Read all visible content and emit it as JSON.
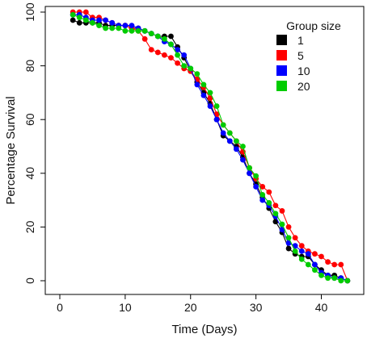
{
  "chart_data": {
    "type": "line",
    "xlabel": "Time (Days)",
    "ylabel": "Percentage Survival",
    "xlim": [
      0,
      45
    ],
    "ylim": [
      0,
      100
    ],
    "xticks": [
      0,
      10,
      20,
      30,
      40
    ],
    "yticks": [
      0,
      20,
      40,
      60,
      80,
      100
    ],
    "xtick_labels": [
      "0",
      "10",
      "20",
      "30",
      "40"
    ],
    "ytick_labels": [
      "0",
      "20",
      "40",
      "60",
      "80",
      "100"
    ],
    "grid": false,
    "legend": {
      "title": "Group size",
      "placement": "top-right"
    },
    "series": [
      {
        "name": "1",
        "color": "#000000",
        "x": [
          2,
          3,
          4,
          5,
          6,
          7,
          8,
          9,
          10,
          11,
          12,
          13,
          14,
          15,
          16,
          17,
          18,
          19,
          20,
          21,
          22,
          23,
          24,
          25,
          26,
          27,
          28,
          29,
          30,
          31,
          32,
          33,
          34,
          35,
          36,
          37,
          38,
          39,
          40,
          41,
          42,
          43,
          44
        ],
        "y": [
          97,
          96,
          96,
          96,
          96,
          95,
          95,
          95,
          95,
          94,
          94,
          93,
          92,
          91,
          91,
          91,
          87,
          83,
          78,
          74,
          70,
          66,
          60,
          54,
          52,
          50,
          46,
          40,
          36,
          31,
          27,
          22,
          18,
          12,
          10,
          9,
          9,
          6,
          4,
          2,
          2,
          1,
          0
        ]
      },
      {
        "name": "5",
        "color": "#ff0000",
        "x": [
          2,
          3,
          4,
          5,
          6,
          7,
          8,
          9,
          10,
          11,
          12,
          13,
          14,
          15,
          16,
          17,
          18,
          19,
          20,
          21,
          22,
          23,
          24,
          25,
          26,
          27,
          28,
          29,
          30,
          31,
          32,
          33,
          34,
          35,
          36,
          37,
          38,
          39,
          40,
          41,
          42,
          43,
          44
        ],
        "y": [
          100,
          100,
          100,
          98,
          98,
          97,
          96,
          95,
          95,
          94,
          93,
          90,
          86,
          85,
          84,
          83,
          81,
          79,
          78,
          75,
          72,
          68,
          62,
          58,
          55,
          52,
          48,
          42,
          38,
          35,
          33,
          28,
          26,
          20,
          16,
          13,
          11,
          10,
          9,
          7,
          6,
          6,
          0
        ]
      },
      {
        "name": "10",
        "color": "#0000ff",
        "x": [
          2,
          3,
          4,
          5,
          6,
          7,
          8,
          9,
          10,
          11,
          12,
          13,
          14,
          15,
          16,
          17,
          18,
          19,
          20,
          21,
          22,
          23,
          24,
          25,
          26,
          27,
          28,
          29,
          30,
          31,
          32,
          33,
          34,
          35,
          36,
          37,
          38,
          39,
          40,
          41,
          42,
          43,
          44
        ],
        "y": [
          99,
          99,
          98,
          97,
          97,
          97,
          96,
          95,
          95,
          95,
          94,
          93,
          92,
          91,
          89,
          88,
          86,
          84,
          79,
          73,
          69,
          65,
          60,
          55,
          52,
          49,
          45,
          40,
          35,
          30,
          28,
          24,
          19,
          14,
          13,
          11,
          10,
          6,
          3,
          2,
          1,
          1,
          0
        ]
      },
      {
        "name": "20",
        "color": "#00cc00",
        "x": [
          2,
          3,
          4,
          5,
          6,
          7,
          8,
          9,
          10,
          11,
          12,
          13,
          14,
          15,
          16,
          17,
          18,
          19,
          20,
          21,
          22,
          23,
          24,
          25,
          26,
          27,
          28,
          29,
          30,
          31,
          32,
          33,
          34,
          35,
          36,
          37,
          38,
          39,
          40,
          41,
          42,
          43,
          44
        ],
        "y": [
          99,
          98,
          97,
          96,
          95,
          94,
          94,
          94,
          93,
          93,
          93,
          93,
          92,
          91,
          90,
          88,
          84,
          80,
          79,
          77,
          73,
          70,
          65,
          58,
          55,
          52,
          50,
          42,
          39,
          32,
          29,
          25,
          21,
          16,
          11,
          8,
          6,
          4,
          2,
          1,
          1,
          0,
          0
        ]
      }
    ]
  }
}
